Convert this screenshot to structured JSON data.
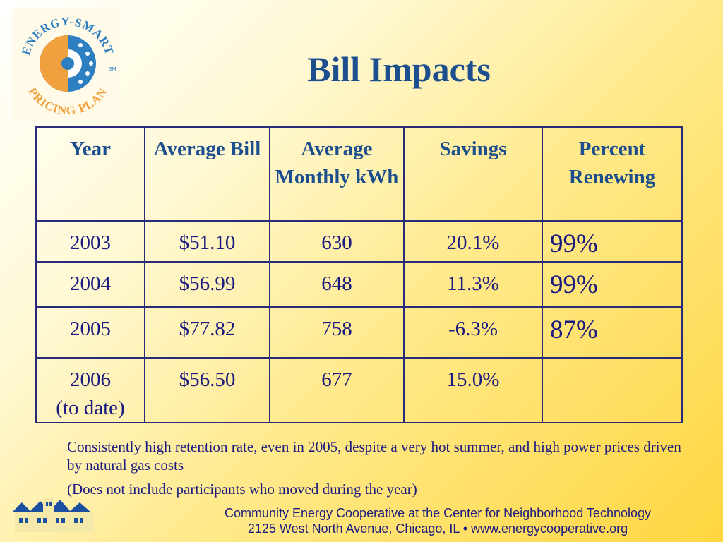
{
  "logo": {
    "name": "energy-smart-pricing-plan-logo",
    "top_text": "ENERGY-SMART",
    "bottom_text": "PRICING PLAN",
    "mark": "SM"
  },
  "title": "Bill Impacts",
  "table": {
    "headers": [
      "Year",
      "Average Bill",
      "Average Monthly kWh",
      "Savings",
      "Percent Renewing"
    ],
    "rows": [
      {
        "year": "2003",
        "bill": "$51.10",
        "kwh": "630",
        "savings": "20.1%",
        "renewing": "99%"
      },
      {
        "year": "2004",
        "bill": "$56.99",
        "kwh": "648",
        "savings": "11.3%",
        "renewing": "99%"
      },
      {
        "year": "2005",
        "bill": "$77.82",
        "kwh": "758",
        "savings": "-6.3%",
        "renewing": "87%"
      },
      {
        "year": "2006",
        "year_note": "(to date)",
        "bill": "$56.50",
        "kwh": "677",
        "savings": "15.0%",
        "renewing": ""
      }
    ]
  },
  "notes": [
    "Consistently high retention rate, even in 2005, despite a very hot summer, and high power prices driven by natural gas costs",
    "(Does not include participants who moved during the year)"
  ],
  "footer": {
    "line1": "Community Energy Cooperative at the Center for Neighborhood Technology",
    "line2": "2125 West North Avenue, Chicago, IL • www.energycooperative.org"
  },
  "colors": {
    "title": "#1d4f8f",
    "text": "#1a1a80",
    "logo_orange": "#f0a03c",
    "logo_blue": "#2e7fc2"
  }
}
